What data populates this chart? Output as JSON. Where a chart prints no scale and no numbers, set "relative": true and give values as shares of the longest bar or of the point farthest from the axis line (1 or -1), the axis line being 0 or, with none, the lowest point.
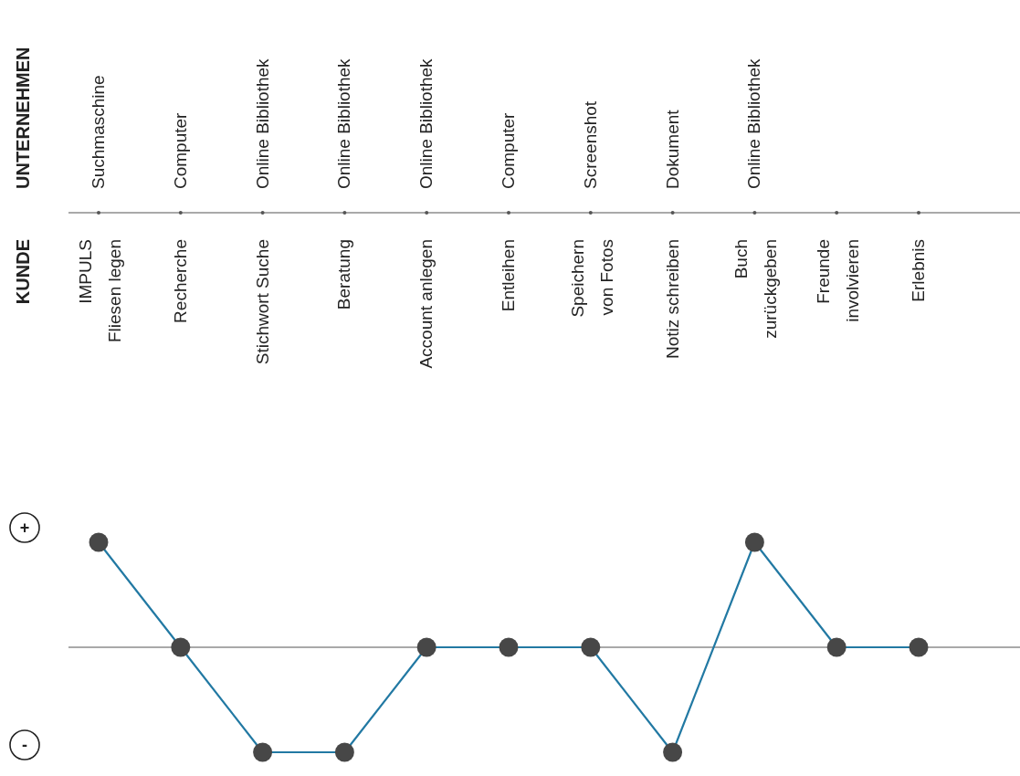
{
  "chart_data": {
    "type": "line",
    "relative": true,
    "marker": "circle",
    "line_style": "solid",
    "color": "#2279a3",
    "categories": [
      "IMPULS\nFliesen legen",
      "Recherche",
      "Stichwort Suche",
      "Beratung",
      "Account anlegen",
      "Entleihen",
      "Speichern\nvon Fotos",
      "Notiz schreiben",
      "Buch\nzurückgeben",
      "Freunde\ninvolvieren",
      "Erlebnis"
    ],
    "values": [
      1,
      0,
      -1,
      -1,
      0,
      0,
      0,
      -1,
      1,
      0,
      0
    ],
    "annotations": [
      "UNTERNEHMEN",
      "KUNDE",
      "+",
      "-",
      "Suchmaschine",
      "Computer",
      "Online Bibliothek",
      "Online Bibliothek",
      "Online Bibliothek",
      "Computer",
      "Screenshot",
      "Dokument",
      "Online Bibliothek"
    ]
  }
}
